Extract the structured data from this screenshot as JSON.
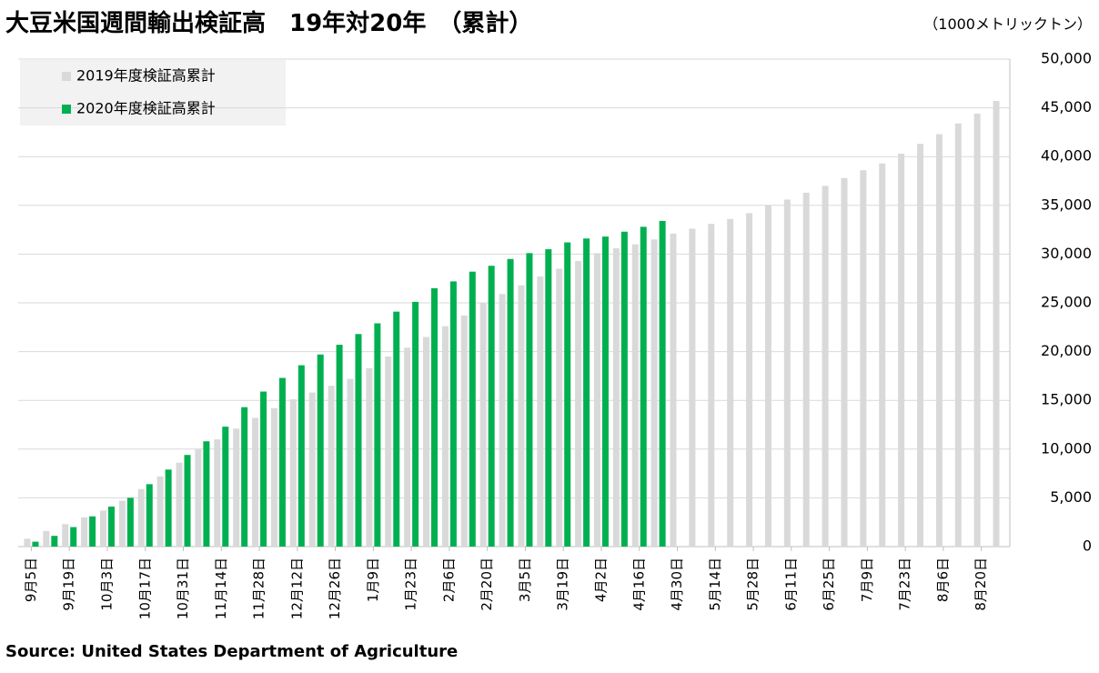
{
  "chart_data": {
    "type": "bar",
    "title": "大豆米国週間輸出検証高　19年対20年　（累計）",
    "unit": "（1000メトリックトン）",
    "source": "Source: United States Department of Agriculture",
    "categories": [
      "9月5日",
      null,
      "9月19日",
      null,
      "10月3日",
      null,
      "10月17日",
      null,
      "10月31日",
      null,
      "11月14日",
      null,
      "11月28日",
      null,
      "12月12日",
      null,
      "12月26日",
      null,
      "1月9日",
      null,
      "1月23日",
      null,
      "2月6日",
      null,
      "2月20日",
      null,
      "3月5日",
      null,
      "3月19日",
      null,
      "4月2日",
      null,
      "4月16日",
      null,
      "4月30日",
      null,
      "5月14日",
      null,
      "5月28日",
      null,
      "6月11日",
      null,
      "6月25日",
      null,
      "7月9日",
      null,
      "7月23日",
      null,
      "8月6日",
      null,
      "8月20日",
      null
    ],
    "series": [
      {
        "name": "2019年度検証高累計",
        "color": "#d9d9d9",
        "values": [
          800,
          1600,
          2300,
          3000,
          3700,
          4700,
          5900,
          7200,
          8600,
          10000,
          11000,
          12100,
          13200,
          14200,
          15100,
          15800,
          16500,
          17200,
          18300,
          19500,
          20400,
          21500,
          22600,
          23700,
          25000,
          25900,
          26800,
          27700,
          28500,
          29300,
          30100,
          30600,
          31000,
          31500,
          32100,
          32600,
          33100,
          33600,
          34200,
          35000,
          35600,
          36300,
          37000,
          37800,
          38600,
          39300,
          40300,
          41300,
          42300,
          43400,
          44400,
          45700
        ]
      },
      {
        "name": "2020年度検証高累計",
        "color": "#00b050",
        "values": [
          500,
          1100,
          2000,
          3100,
          4100,
          5000,
          6400,
          7900,
          9400,
          10800,
          12300,
          14300,
          15900,
          17300,
          18600,
          19700,
          20700,
          21800,
          22900,
          24100,
          25100,
          26500,
          27200,
          28200,
          28800,
          29500,
          30100,
          30500,
          31200,
          31600,
          31800,
          32300,
          32800,
          33400,
          null,
          null,
          null,
          null,
          null,
          null,
          null,
          null,
          null,
          null,
          null,
          null,
          null,
          null,
          null,
          null,
          null,
          null
        ]
      }
    ],
    "ylim": [
      0,
      50000
    ],
    "yticks": [
      0,
      {
        "value": 5000,
        "label": "5,000"
      },
      {
        "value": 10000,
        "label": "10,000"
      },
      {
        "value": 15000,
        "label": "15,000"
      },
      {
        "value": 20000,
        "label": "20,000"
      },
      {
        "value": 25000,
        "label": "25,000"
      },
      {
        "value": 30000,
        "label": "30,000"
      },
      {
        "value": 35000,
        "label": "35,000"
      },
      {
        "value": 40000,
        "label": "40,000"
      },
      {
        "value": 45000,
        "label": "45,000"
      },
      {
        "value": 50000,
        "label": "50,000"
      }
    ],
    "grid": true
  }
}
